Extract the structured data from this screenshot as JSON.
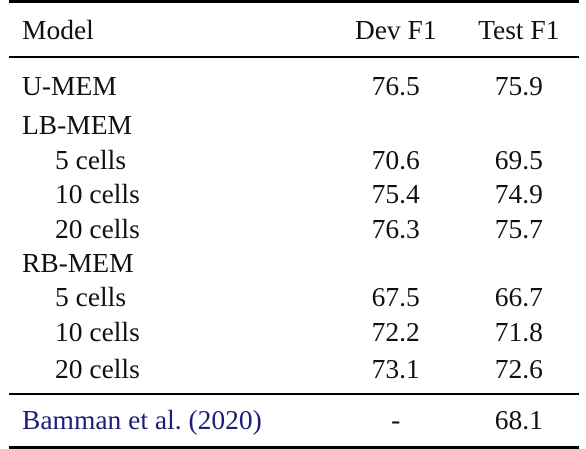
{
  "table": {
    "headers": {
      "model": "Model",
      "dev": "Dev F1",
      "test": "Test F1"
    },
    "rows": [
      {
        "model": "U-MEM",
        "dev": "76.5",
        "test": "75.9"
      },
      {
        "model": "LB-MEM",
        "dev": "",
        "test": ""
      },
      {
        "model": "5 cells",
        "dev": "70.6",
        "test": "69.5"
      },
      {
        "model": "10 cells",
        "dev": "75.4",
        "test": "74.9"
      },
      {
        "model": "20 cells",
        "dev": "76.3",
        "test": "75.7"
      },
      {
        "model": "RB-MEM",
        "dev": "",
        "test": ""
      },
      {
        "model": "5 cells",
        "dev": "67.5",
        "test": "66.7"
      },
      {
        "model": "10 cells",
        "dev": "72.2",
        "test": "71.8"
      },
      {
        "model": "20 cells",
        "dev": "73.1",
        "test": "72.6"
      }
    ],
    "baseline": {
      "model": "Bamman et al. (2020)",
      "dev": "-",
      "test": "68.1",
      "link_color": "#1e1e78"
    }
  }
}
